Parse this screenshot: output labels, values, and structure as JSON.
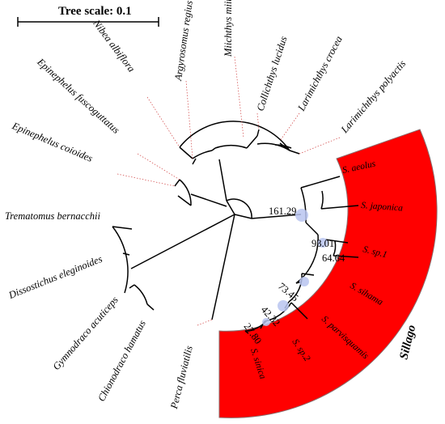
{
  "scale_bar": {
    "label": "Tree scale: 0.1"
  },
  "taxa": [
    "Argyrosomus regius",
    "Miichthys miiuy",
    "Collichthys lucidus",
    "Larimichthys crocea",
    "Larimichthys polyactis",
    "Nibea albiflora",
    "Epinephelus fuscoguttatus",
    "Epinephelus coioides",
    "Trematomus bernacchii",
    "Dissostichus eleginoides",
    "Gymnodraco acuticeps",
    "Chionodraco hamatus",
    "Perca fluviatilis"
  ],
  "sillago_taxa": [
    "S. aeolus",
    "S. japonica",
    "S. sp.1",
    "S. sihama",
    "S. parvisquamis",
    "S. sp.2",
    "S. sinica"
  ],
  "node_values": [
    "161.29",
    "93.01",
    "64.64",
    "73.45",
    "42.32",
    "27.80"
  ],
  "clade": {
    "label": "Sillago",
    "highlight_color": "#ff0000",
    "node_marker_color": "#b8c4f0"
  }
}
